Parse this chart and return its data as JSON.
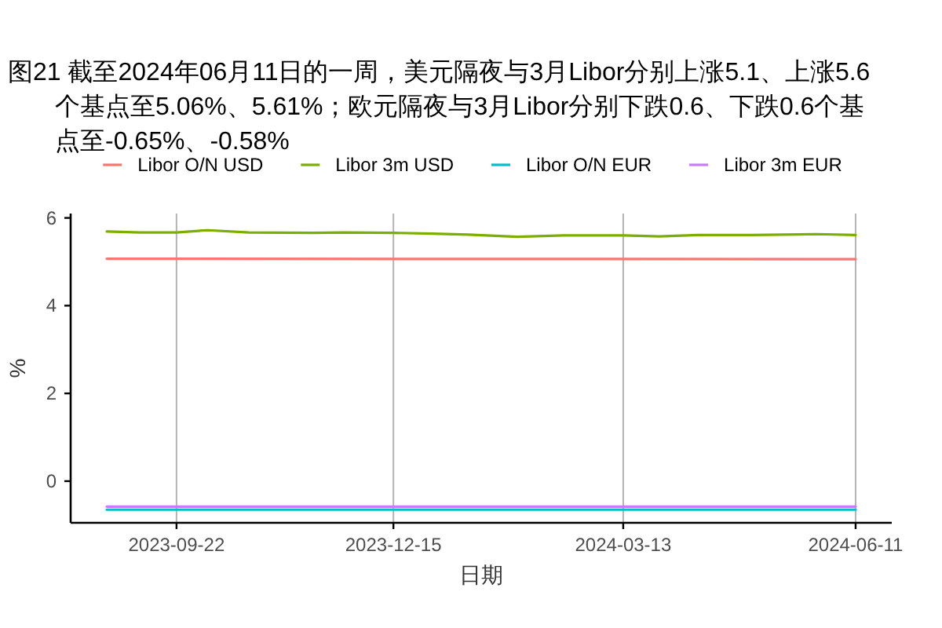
{
  "chart_data": {
    "type": "line",
    "title": "图21  截至2024年06月11日的一周，美元隔夜与3月Libor分别上涨5.1、上涨5.6个基点至5.06%、5.61%；欧元隔夜与3月Libor分别下跌0.6、下跌0.6个基点至-0.65%、-0.58%",
    "xlabel": "日期",
    "ylabel": "%",
    "xlim": [
      "2023-08-12",
      "2024-06-25"
    ],
    "xticks": [
      "2023-09-22",
      "2023-12-15",
      "2024-03-13",
      "2024-06-11"
    ],
    "ylim": [
      -0.95,
      6.1
    ],
    "yticks": [
      0,
      2,
      4,
      6
    ],
    "grid": "x",
    "legend": "top",
    "series": [
      {
        "name": "Libor O/N USD",
        "color": "#f8766d",
        "x": [
          "2023-08-26",
          "2024-06-11"
        ],
        "values": [
          5.07,
          5.06
        ]
      },
      {
        "name": "Libor 3m USD",
        "color": "#7cae00",
        "x": [
          "2023-08-26",
          "2023-09-08",
          "2023-09-22",
          "2023-10-04",
          "2023-10-20",
          "2023-11-14",
          "2023-11-26",
          "2023-12-15",
          "2023-12-30",
          "2024-01-13",
          "2024-02-01",
          "2024-02-19",
          "2024-03-13",
          "2024-03-27",
          "2024-04-11",
          "2024-05-02",
          "2024-05-27",
          "2024-06-11"
        ],
        "values": [
          5.69,
          5.67,
          5.67,
          5.72,
          5.67,
          5.66,
          5.67,
          5.66,
          5.64,
          5.62,
          5.57,
          5.6,
          5.6,
          5.58,
          5.61,
          5.61,
          5.63,
          5.61
        ]
      },
      {
        "name": "Libor O/N EUR",
        "color": "#00bfc4",
        "x": [
          "2023-08-26",
          "2024-06-11"
        ],
        "values": [
          -0.65,
          -0.65
        ]
      },
      {
        "name": "Libor 3m EUR",
        "color": "#c77cff",
        "x": [
          "2023-08-26",
          "2024-06-11"
        ],
        "values": [
          -0.58,
          -0.58
        ]
      }
    ]
  }
}
